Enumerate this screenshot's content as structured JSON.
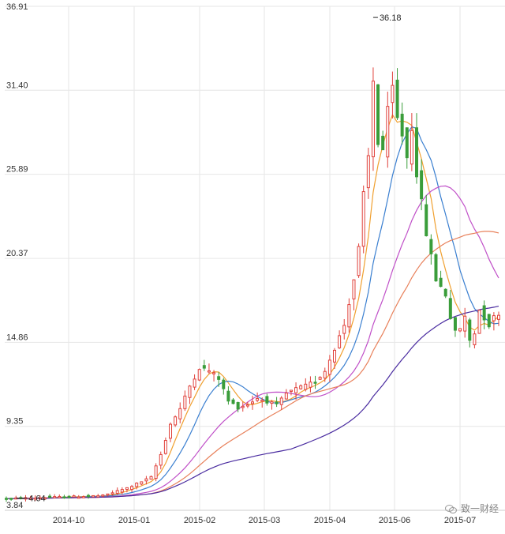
{
  "chart_data": {
    "type": "candlestick",
    "yticks": [
      "36.91",
      "31.40",
      "25.89",
      "20.37",
      "14.86",
      "9.35",
      "3.84"
    ],
    "ylim": [
      3.84,
      36.91
    ],
    "xticks": [
      "2014-10",
      "2015-01",
      "2015-02",
      "2015-03",
      "2015-04",
      "2015-06",
      "2015-07"
    ],
    "grid": true,
    "annotations": {
      "max_label": "36.18",
      "min_label": "4.64"
    },
    "up_color": "#e0403a",
    "down_color": "#3a9d3a",
    "ma_colors": [
      "#f0a030",
      "#3a7fd0",
      "#c050c8",
      "#e8805a",
      "#4a2ca0"
    ],
    "price_keypoints": [
      [
        0,
        4.6
      ],
      [
        10,
        4.7
      ],
      [
        20,
        4.8
      ],
      [
        25,
        5.3
      ],
      [
        30,
        6.0
      ],
      [
        32,
        7.5
      ],
      [
        34,
        9.5
      ],
      [
        36,
        10.5
      ],
      [
        38,
        12.0
      ],
      [
        40,
        13.2
      ],
      [
        42,
        13.0
      ],
      [
        44,
        12.5
      ],
      [
        46,
        11.0
      ],
      [
        48,
        10.6
      ],
      [
        50,
        10.8
      ],
      [
        52,
        11.2
      ],
      [
        54,
        11.0
      ],
      [
        56,
        10.7
      ],
      [
        58,
        11.5
      ],
      [
        60,
        11.8
      ],
      [
        62,
        12.0
      ],
      [
        64,
        12.3
      ],
      [
        66,
        13.0
      ],
      [
        68,
        14.5
      ],
      [
        70,
        16.0
      ],
      [
        72,
        19.0
      ],
      [
        73,
        21.0
      ],
      [
        74,
        24.5
      ],
      [
        75,
        27.0
      ],
      [
        76,
        32.0
      ],
      [
        77,
        28.0
      ],
      [
        78,
        27.5
      ],
      [
        79,
        30.0
      ],
      [
        80,
        31.5
      ],
      [
        81,
        29.5
      ],
      [
        82,
        28.5
      ],
      [
        83,
        27.0
      ],
      [
        84,
        29.0
      ],
      [
        85,
        26.0
      ],
      [
        86,
        24.0
      ],
      [
        87,
        22.0
      ],
      [
        88,
        20.5
      ],
      [
        89,
        19.0
      ],
      [
        90,
        18.5
      ],
      [
        91,
        18.0
      ],
      [
        92,
        16.5
      ],
      [
        93,
        15.5
      ],
      [
        94,
        15.8
      ],
      [
        95,
        16.5
      ],
      [
        96,
        15.0
      ],
      [
        97,
        15.5
      ],
      [
        98,
        17.0
      ],
      [
        99,
        16.5
      ],
      [
        100,
        16.0
      ],
      [
        101,
        16.5
      ],
      [
        102,
        16.8
      ]
    ]
  },
  "watermark": {
    "text": "致一财经"
  }
}
